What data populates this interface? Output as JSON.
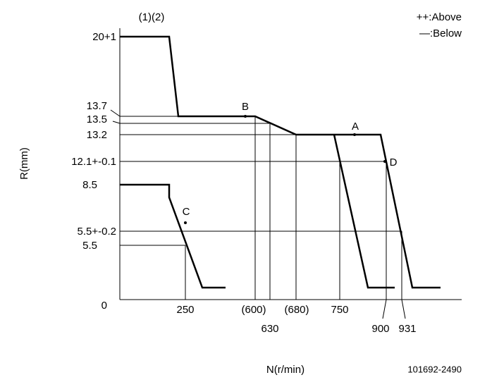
{
  "header": {
    "curve_labels": "(1)(2)",
    "legend_above": "++:Above",
    "legend_below": "—:Below"
  },
  "axes": {
    "y_title": "R(mm)",
    "x_title": "N(r/min)",
    "y_labels": [
      "20+1",
      "13.7",
      "13.5",
      "13.2",
      "12.1+-0.1",
      "8.5",
      "5.5+-0.2",
      "5.5",
      "0"
    ],
    "x_labels": [
      "250",
      "(600)",
      "630",
      "(680)",
      "750",
      "900",
      "931"
    ]
  },
  "points": [
    "A",
    "B",
    "C",
    "D"
  ],
  "footer": {
    "code": "101692-2490"
  }
}
